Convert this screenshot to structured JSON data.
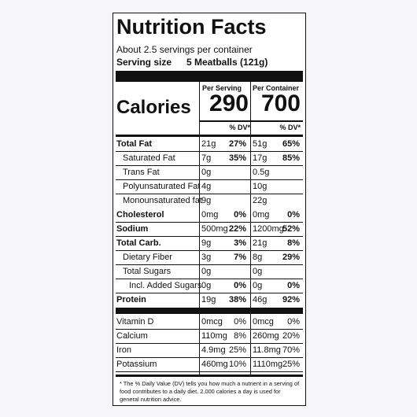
{
  "header": {
    "title": "Nutrition Facts",
    "servings": "About 2.5 servings per container",
    "serving_size_label": "Serving size",
    "serving_size": "5 Meatballs (121g)"
  },
  "columns": {
    "per_serving": "Per Serving",
    "per_container": "Per Container"
  },
  "calories": {
    "label": "Calories",
    "per_serving": "290",
    "per_container": "700"
  },
  "dv_header": {
    "per_serving": "% DV*",
    "per_container": "% DV*"
  },
  "nutrients": [
    {
      "name": "Total Fat",
      "amount": "21g",
      "dv": "27%",
      "container_amount": "51g",
      "container_dv": "65%"
    },
    {
      "name": "Saturated Fat",
      "amount": "7g",
      "dv": "35%",
      "container_amount": "17g",
      "container_dv": "85%"
    },
    {
      "name": "Trans Fat",
      "amount": "0g",
      "container_amount": "0.5g"
    },
    {
      "name": "Polyunsaturated Fat",
      "amount": "4g",
      "container_amount": "10g"
    },
    {
      "name": "Monounsaturated fat",
      "amount": "9g",
      "container_amount": "22g"
    },
    {
      "name": "Cholesterol",
      "amount": "0mg",
      "dv": "0%",
      "container_amount": "0mg",
      "container_dv": "0%"
    },
    {
      "name": "Sodium",
      "amount": "500mg",
      "dv": "22%",
      "container_amount": "1200mg",
      "container_dv": "52%"
    },
    {
      "name": "Total Carb.",
      "amount": "9g",
      "dv": "3%",
      "container_amount": "21g",
      "container_dv": "8%"
    },
    {
      "name": "Dietary Fiber",
      "amount": "3g",
      "dv": "7%",
      "container_amount": "8g",
      "container_dv": "29%"
    },
    {
      "name": "Total Sugars",
      "amount": "0g",
      "container_amount": "0g"
    },
    {
      "name": "Incl. Added Sugars",
      "amount": "0g",
      "dv": "0%",
      "container_amount": "0g",
      "container_dv": "0%"
    },
    {
      "name": "Protein",
      "amount": "19g",
      "dv": "38%",
      "container_amount": "46g",
      "container_dv": "92%"
    }
  ],
  "vitamins": [
    {
      "name": "Vitamin D",
      "amount": "0mcg",
      "dv": "0%",
      "container_amount": "0mcg",
      "container_dv": "0%"
    },
    {
      "name": "Calcium",
      "amount": "110mg",
      "dv": "8%",
      "container_amount": "260mg",
      "container_dv": "20%"
    },
    {
      "name": "Iron",
      "amount": "4.9mg",
      "dv": "25%",
      "container_amount": "11.8mg",
      "container_dv": "70%"
    },
    {
      "name": "Potassium",
      "amount": "460mg",
      "dv": "10%",
      "container_amount": "1110mg",
      "container_dv": "25%"
    }
  ],
  "footnote": "* The % Daily Value (DV) tells you how much a nutrient in a serving of food contributes to a daily diet. 2,000 calories a day is used for general nutrition advice."
}
